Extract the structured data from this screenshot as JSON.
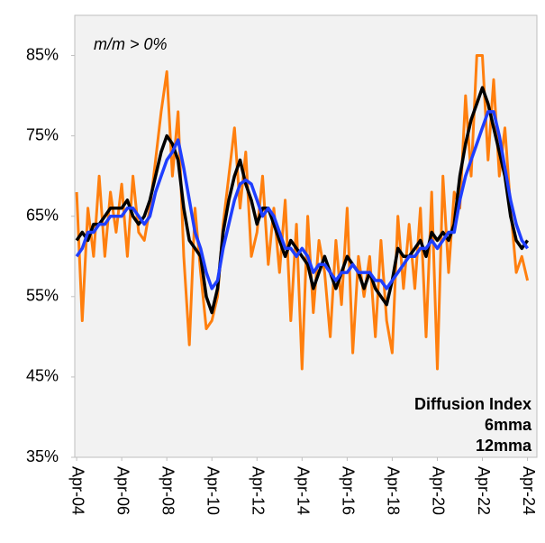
{
  "chart_data": {
    "type": "line",
    "annotation": "m/m > 0%",
    "x": [
      "Apr-04",
      "Jul-04",
      "Oct-04",
      "Jan-05",
      "Apr-05",
      "Jul-05",
      "Oct-05",
      "Jan-06",
      "Apr-06",
      "Jul-06",
      "Oct-06",
      "Jan-07",
      "Apr-07",
      "Jul-07",
      "Oct-07",
      "Jan-08",
      "Apr-08",
      "Jul-08",
      "Oct-08",
      "Jan-09",
      "Apr-09",
      "Jul-09",
      "Oct-09",
      "Jan-10",
      "Apr-10",
      "Jul-10",
      "Oct-10",
      "Jan-11",
      "Apr-11",
      "Jul-11",
      "Oct-11",
      "Jan-12",
      "Apr-12",
      "Jul-12",
      "Oct-12",
      "Jan-13",
      "Apr-13",
      "Jul-13",
      "Oct-13",
      "Jan-14",
      "Apr-14",
      "Jul-14",
      "Oct-14",
      "Jan-15",
      "Apr-15",
      "Jul-15",
      "Oct-15",
      "Jan-16",
      "Apr-16",
      "Jul-16",
      "Oct-16",
      "Jan-17",
      "Apr-17",
      "Jul-17",
      "Oct-17",
      "Jan-18",
      "Apr-18",
      "Jul-18",
      "Oct-18",
      "Jan-19",
      "Apr-19",
      "Jul-19",
      "Oct-19",
      "Jan-20",
      "Apr-20",
      "Jul-20",
      "Oct-20",
      "Jan-21",
      "Apr-21",
      "Jul-21",
      "Oct-21",
      "Jan-22",
      "Apr-22",
      "Jul-22",
      "Oct-22",
      "Jan-23",
      "Apr-23",
      "Jul-23",
      "Oct-23",
      "Jan-24",
      "Apr-24"
    ],
    "series": [
      {
        "name": "Diffusion Index",
        "color": "#ff7f0e",
        "label_color": "#ff7f0e",
        "width": 3,
        "values": [
          68,
          52,
          66,
          60,
          70,
          60,
          68,
          63,
          69,
          60,
          70,
          63,
          62,
          66,
          72,
          78,
          83,
          70,
          78,
          60,
          49,
          66,
          58,
          51,
          52,
          55,
          64,
          70,
          76,
          66,
          73,
          60,
          63,
          70,
          59,
          66,
          58,
          67,
          52,
          64,
          46,
          65,
          53,
          62,
          58,
          50,
          62,
          54,
          66,
          48,
          60,
          55,
          60,
          50,
          62,
          52,
          48,
          65,
          56,
          64,
          56,
          66,
          50,
          68,
          46,
          70,
          58,
          68,
          66,
          80,
          70,
          85,
          85,
          72,
          82,
          70,
          76,
          66,
          58,
          60,
          57
        ]
      },
      {
        "name": "6mma",
        "color": "#000000",
        "label_color": "#000000",
        "width": 3.5,
        "values": [
          62,
          63,
          62,
          64,
          64,
          65,
          66,
          66,
          66,
          67,
          65,
          64,
          65,
          67,
          70,
          73,
          75,
          74,
          72,
          66,
          62,
          61,
          60,
          55,
          53,
          56,
          63,
          67,
          70,
          72,
          69,
          67,
          64,
          66,
          66,
          64,
          62,
          60,
          62,
          61,
          60,
          59,
          56,
          58,
          60,
          58,
          56,
          58,
          60,
          59,
          58,
          56,
          58,
          56,
          55,
          54,
          57,
          61,
          60,
          60,
          61,
          62,
          60,
          63,
          62,
          63,
          62,
          64,
          70,
          74,
          77,
          79,
          81,
          79,
          76,
          73,
          70,
          65,
          62,
          61,
          62
        ]
      },
      {
        "name": "12mma",
        "color": "#1f3fff",
        "label_color": "#1a1aa8",
        "width": 3.5,
        "values": [
          60,
          61,
          63,
          63,
          64,
          64,
          65,
          65,
          65,
          66,
          66,
          65,
          64,
          65,
          68,
          70,
          72,
          73,
          74.5,
          71,
          67,
          63,
          61,
          58,
          56,
          57,
          61,
          64,
          67,
          69,
          69.5,
          69,
          67,
          65,
          66,
          65,
          63,
          61,
          61,
          60,
          61,
          60,
          58,
          59,
          59,
          58,
          57,
          58,
          58,
          59,
          58,
          58,
          58,
          57,
          57,
          56,
          57,
          58,
          59,
          60,
          60,
          61,
          61,
          62,
          61,
          62,
          63,
          63,
          67,
          70,
          72,
          74,
          76,
          78,
          78,
          75,
          71,
          67,
          64,
          62,
          61
        ]
      }
    ],
    "xlim": [
      "Mar-04",
      "Sep-24"
    ],
    "xticks": [
      "Apr-04",
      "Apr-06",
      "Apr-08",
      "Apr-10",
      "Apr-12",
      "Apr-14",
      "Apr-16",
      "Apr-18",
      "Apr-20",
      "Apr-22",
      "Apr-24"
    ],
    "ylim": [
      35,
      90
    ],
    "yticks": [
      {
        "value": 35,
        "label": "35%"
      },
      {
        "value": 45,
        "label": "45%"
      },
      {
        "value": 55,
        "label": "55%"
      },
      {
        "value": 65,
        "label": "65%"
      },
      {
        "value": 75,
        "label": "75%"
      },
      {
        "value": 85,
        "label": "85%"
      }
    ],
    "legend": "lower right",
    "background": "#f2f2f2"
  }
}
